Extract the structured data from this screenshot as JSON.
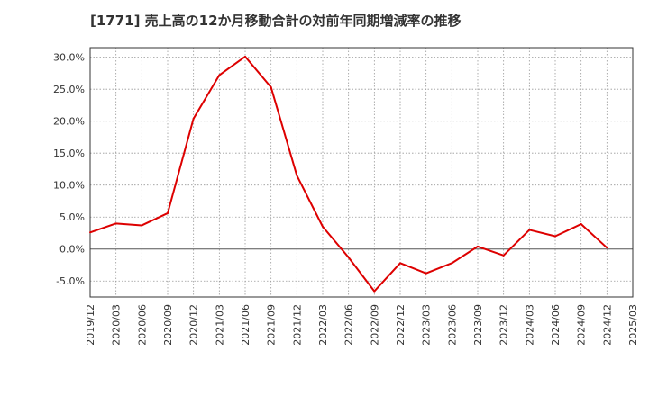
{
  "chart_data": {
    "type": "line",
    "title": "[1771]  売上高の12か月移動合計の対前年同期増減率の推移",
    "xlabel": "",
    "ylabel": "",
    "ylim": [
      -7.5,
      31.5
    ],
    "yticks": [
      -5,
      0,
      5,
      10,
      15,
      20,
      25,
      30
    ],
    "ytick_labels": [
      "-5.0%",
      "0.0%",
      "5.0%",
      "10.0%",
      "15.0%",
      "20.0%",
      "25.0%",
      "30.0%"
    ],
    "categories": [
      "2019/12",
      "2020/03",
      "2020/06",
      "2020/09",
      "2020/12",
      "2021/03",
      "2021/06",
      "2021/09",
      "2021/12",
      "2022/03",
      "2022/06",
      "2022/09",
      "2022/12",
      "2023/03",
      "2023/06",
      "2023/09",
      "2023/12",
      "2024/03",
      "2024/06",
      "2024/09",
      "2024/12",
      "2025/03"
    ],
    "series": [
      {
        "name": "増減率",
        "color": "#dd0000",
        "values": [
          2.6,
          4.0,
          3.7,
          5.6,
          20.4,
          27.2,
          30.1,
          25.3,
          11.5,
          3.5,
          -1.3,
          -6.6,
          -2.2,
          -3.8,
          -2.2,
          0.4,
          -1.0,
          3.0,
          2.0,
          3.9,
          0.2,
          null
        ]
      }
    ],
    "grid": true,
    "zero_line": true
  }
}
